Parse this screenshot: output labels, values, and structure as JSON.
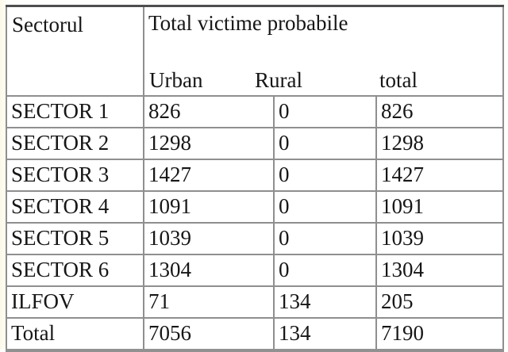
{
  "table": {
    "corner_label": "Sectorul",
    "group_header": "Total victime probabile",
    "sub_headers": [
      "Urban",
      "Rural",
      "total"
    ],
    "rows": [
      [
        "SECTOR 1",
        "826",
        "0",
        "826"
      ],
      [
        "SECTOR 2",
        "1298",
        "0",
        "1298"
      ],
      [
        "SECTOR 3",
        "1427",
        "0",
        "1427"
      ],
      [
        "SECTOR 4",
        "1091",
        "0",
        "1091"
      ],
      [
        "SECTOR 5",
        "1039",
        "0",
        "1039"
      ],
      [
        "SECTOR 6",
        "1304",
        "0",
        "1304"
      ],
      [
        "ILFOV",
        "71",
        "134",
        "205"
      ],
      [
        "Total",
        "7056",
        "134",
        "7190"
      ]
    ],
    "colors": {
      "border_interior": "#8f8f8f",
      "border_top": "#4d4d4d",
      "border_bottom": "#919191",
      "text": "#161616",
      "background": "#ffffff"
    }
  }
}
